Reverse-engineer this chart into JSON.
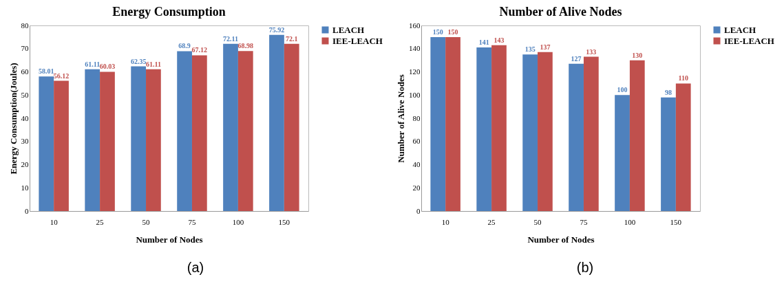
{
  "chart_data": [
    {
      "type": "bar",
      "title": "Energy Consumption",
      "xlabel": "Number of Nodes",
      "ylabel": "Energy Consumption(Joules)",
      "categories": [
        "10",
        "25",
        "50",
        "75",
        "100",
        "150"
      ],
      "series": [
        {
          "name": "LEACH",
          "color": "#4f81bd",
          "values": [
            58.01,
            61.11,
            62.35,
            68.9,
            72.11,
            75.92
          ]
        },
        {
          "name": "IEE-LEACH",
          "color": "#c0504d",
          "values": [
            56.12,
            60.03,
            61.11,
            67.12,
            68.98,
            72.1
          ]
        }
      ],
      "ylim": [
        0,
        80
      ],
      "yticks": [
        0,
        10,
        20,
        30,
        40,
        50,
        60,
        70,
        80
      ],
      "data_labels": true,
      "legend": "right",
      "annotations": [
        "(a)"
      ]
    },
    {
      "type": "bar",
      "title": "Number of Alive Nodes",
      "xlabel": "Number of Nodes",
      "ylabel": "Number of Alive Nodes",
      "categories": [
        "10",
        "25",
        "50",
        "75",
        "100",
        "150"
      ],
      "series": [
        {
          "name": "LEACH",
          "color": "#4f81bd",
          "values": [
            150,
            141,
            135,
            127,
            100,
            98
          ]
        },
        {
          "name": "IEE-LEACH",
          "color": "#c0504d",
          "values": [
            150,
            143,
            137,
            133,
            130,
            110
          ]
        }
      ],
      "ylim": [
        0,
        160
      ],
      "yticks": [
        0,
        20,
        40,
        60,
        80,
        100,
        120,
        140,
        160
      ],
      "data_labels": true,
      "legend": "right",
      "annotations": [
        "(b)"
      ]
    }
  ]
}
